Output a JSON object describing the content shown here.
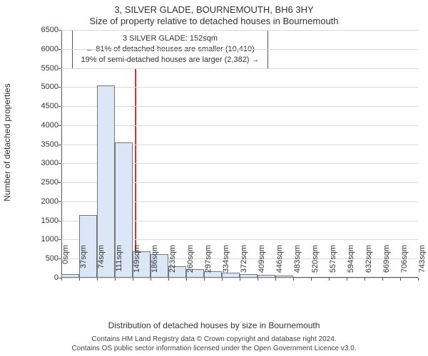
{
  "title": {
    "line1": "3, SILVER GLADE, BOURNEMOUTH, BH6 3HY",
    "line2": "Size of property relative to detached houses in Bournemouth"
  },
  "chart": {
    "type": "histogram",
    "y_label": "Number of detached properties",
    "x_label": "Distribution of detached houses by size in Bournemouth",
    "ylim": [
      0,
      6500
    ],
    "ytick_step": 500,
    "yticks": [
      0,
      500,
      1000,
      1500,
      2000,
      2500,
      3000,
      3500,
      4000,
      4500,
      5000,
      5500,
      6000,
      6500
    ],
    "xticks": [
      "0sqm",
      "37sqm",
      "74sqm",
      "111sqm",
      "149sqm",
      "186sqm",
      "223sqm",
      "260sqm",
      "297sqm",
      "334sqm",
      "372sqm",
      "409sqm",
      "446sqm",
      "483sqm",
      "520sqm",
      "557sqm",
      "594sqm",
      "632sqm",
      "669sqm",
      "706sqm",
      "743sqm"
    ],
    "values": [
      100,
      1650,
      5050,
      3550,
      700,
      610,
      300,
      230,
      170,
      130,
      100,
      80,
      50,
      0,
      0,
      0,
      0,
      0,
      0,
      0
    ],
    "bar_fill": "#dbe7f6",
    "bar_border": "#777777",
    "grid_color": "#d9d9d9",
    "background_color": "#ffffff",
    "axis_color": "#555555",
    "marker": {
      "fraction": 0.205,
      "color": "#e03030"
    },
    "info_box": {
      "line1": "3 SILVER GLADE: 152sqm",
      "line2": "← 81% of detached houses are smaller (10,410)",
      "line3": "19% of semi-detached houses are larger (2,382) →"
    },
    "title_fontsize": 13,
    "label_fontsize": 12,
    "tick_fontsize": 11
  },
  "footer": {
    "line1": "Contains HM Land Registry data © Crown copyright and database right 2024.",
    "line2": "Contains OS public sector information licensed under the Open Government Licence v3.0."
  }
}
